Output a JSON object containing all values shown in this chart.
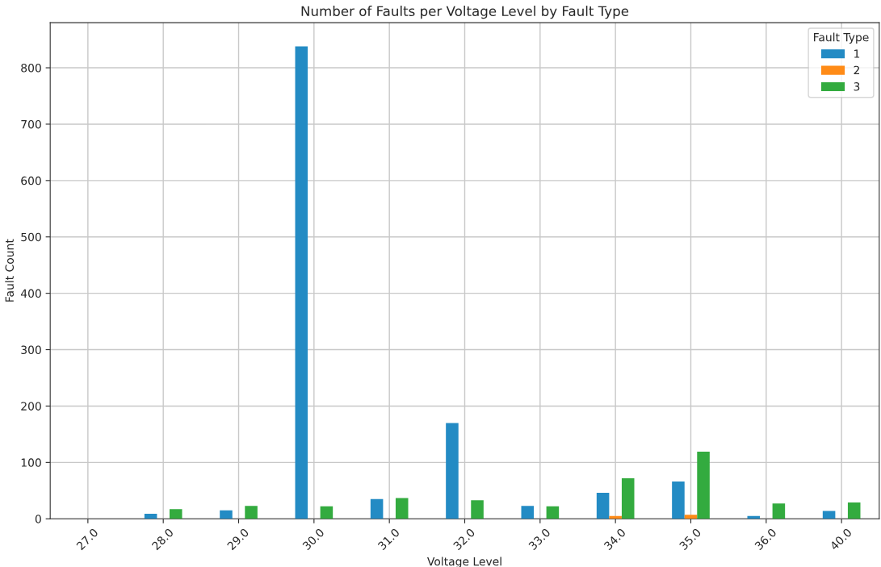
{
  "chart_data": {
    "type": "bar",
    "title": "Number of Faults per Voltage Level by Fault Type",
    "xlabel": "Voltage Level",
    "ylabel": "Fault Count",
    "legend_title": "Fault Type",
    "categories": [
      "27.0",
      "28.0",
      "29.0",
      "30.0",
      "31.0",
      "32.0",
      "33.0",
      "34.0",
      "35.0",
      "36.0",
      "40.0"
    ],
    "series": [
      {
        "name": "1",
        "color": "#238bc4",
        "values": [
          null,
          9,
          15,
          838,
          35,
          170,
          23,
          46,
          66,
          5,
          14
        ]
      },
      {
        "name": "2",
        "color": "#ff8b17",
        "values": [
          0,
          0,
          0,
          null,
          0,
          0,
          0,
          5,
          7,
          0,
          0
        ]
      },
      {
        "name": "3",
        "color": "#33ab3f",
        "values": [
          0,
          17,
          23,
          22,
          37,
          33,
          22,
          72,
          119,
          27,
          29
        ]
      }
    ],
    "ylim": [
      0,
      880
    ],
    "yticks": [
      0,
      100,
      200,
      300,
      400,
      500,
      600,
      700,
      800
    ],
    "grid": true,
    "legend": "top right"
  }
}
